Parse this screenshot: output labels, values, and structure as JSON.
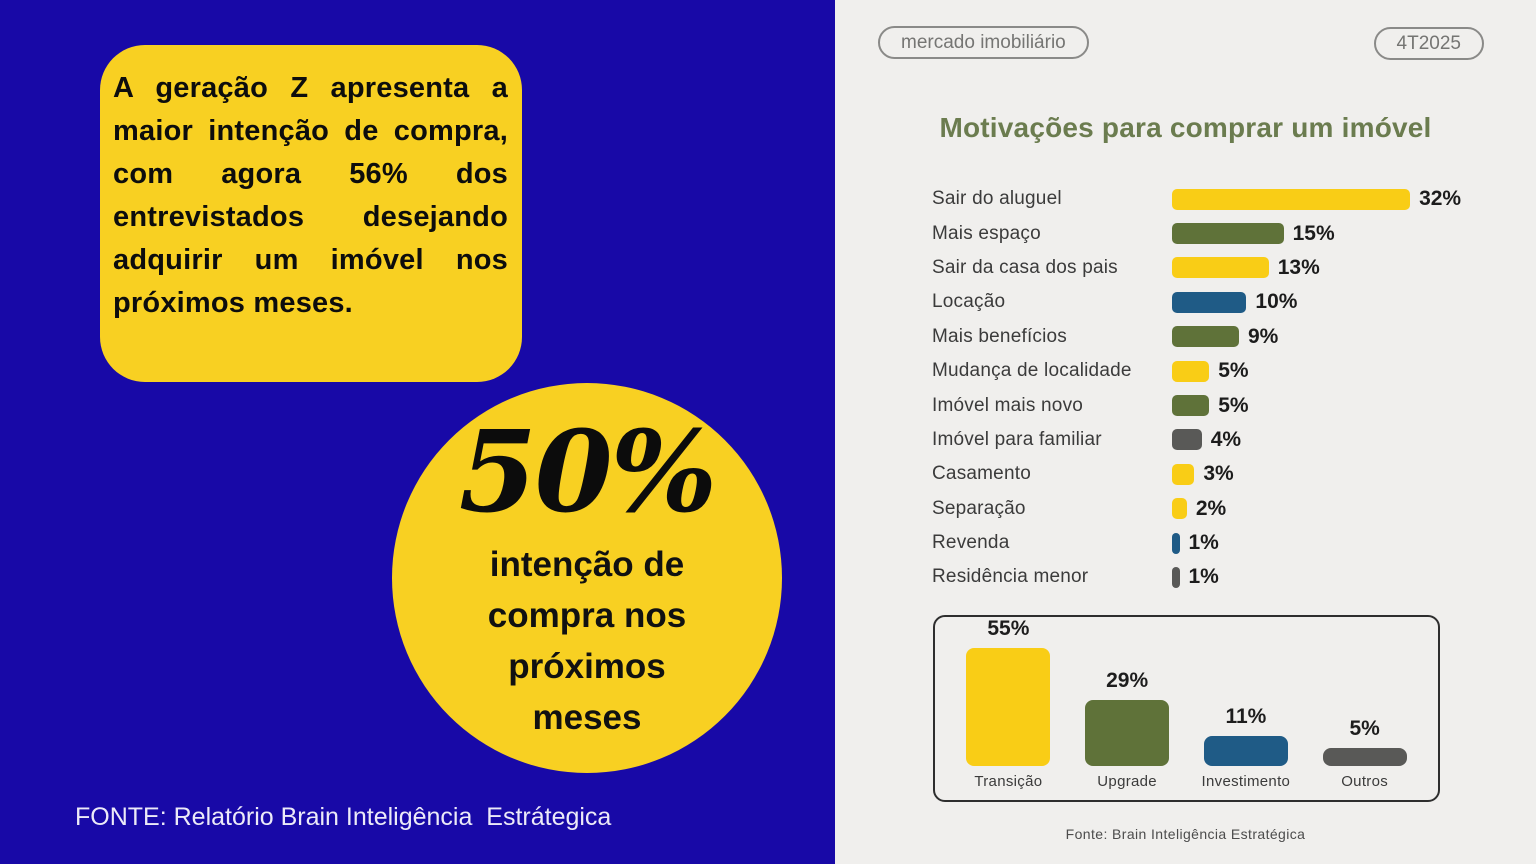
{
  "left_panel": {
    "background": "#1809A7",
    "highlight_box": {
      "background": "#F8D022",
      "text": "A geração Z apresenta a maior intenção de compra, com agora 56% dos entrevistados desejando adquirir um imóvel nos próximos meses."
    },
    "stat_circle": {
      "background": "#F8D022",
      "value": "50%",
      "caption": "intenção de compra nos próximos meses"
    },
    "source": "FONTE: Relatório Brain Inteligência  Estrátegica"
  },
  "right_panel": {
    "background": "#F0EFED",
    "badge_left": "mercado imobiliário",
    "badge_right": "4T2025",
    "title": "Motivações para comprar um imóvel",
    "title_color": "#6B7C4F",
    "source": "Fonte: Brain Inteligência Estratégica"
  },
  "colors": {
    "yellow": "#F9CD16",
    "olive": "#5F7239",
    "blue": "#1F5B86",
    "gray": "#595957"
  },
  "chart_data": [
    {
      "type": "bar",
      "orientation": "horizontal",
      "title": "Motivações para comprar um imóvel",
      "legend_position": "none",
      "grid": false,
      "xlim": [
        0,
        32
      ],
      "categories": [
        "Sair do aluguel",
        "Mais espaço",
        "Sair da casa dos pais",
        "Locação",
        "Mais benefícios",
        "Mudança de localidade",
        "Imóvel mais novo",
        "Imóvel para familiar",
        "Casamento",
        "Separação",
        "Revenda",
        "Residência menor"
      ],
      "values": [
        32,
        15,
        13,
        10,
        9,
        5,
        5,
        4,
        3,
        2,
        1,
        1
      ],
      "value_labels": [
        "32%",
        "15%",
        "13%",
        "10%",
        "9%",
        "5%",
        "5%",
        "4%",
        "3%",
        "2%",
        "1%",
        "1%"
      ],
      "bar_colors": [
        "yellow",
        "olive",
        "yellow",
        "blue",
        "olive",
        "yellow",
        "olive",
        "gray",
        "yellow",
        "yellow",
        "blue",
        "gray"
      ]
    },
    {
      "type": "bar",
      "orientation": "vertical",
      "title": "",
      "legend_position": "none",
      "grid": false,
      "ylim": [
        0,
        55
      ],
      "categories": [
        "Transição",
        "Upgrade",
        "Investimento",
        "Outros"
      ],
      "values": [
        55,
        29,
        11,
        5
      ],
      "value_labels": [
        "55%",
        "29%",
        "11%",
        "5%"
      ],
      "bar_colors": [
        "yellow",
        "olive",
        "blue",
        "gray"
      ]
    }
  ]
}
